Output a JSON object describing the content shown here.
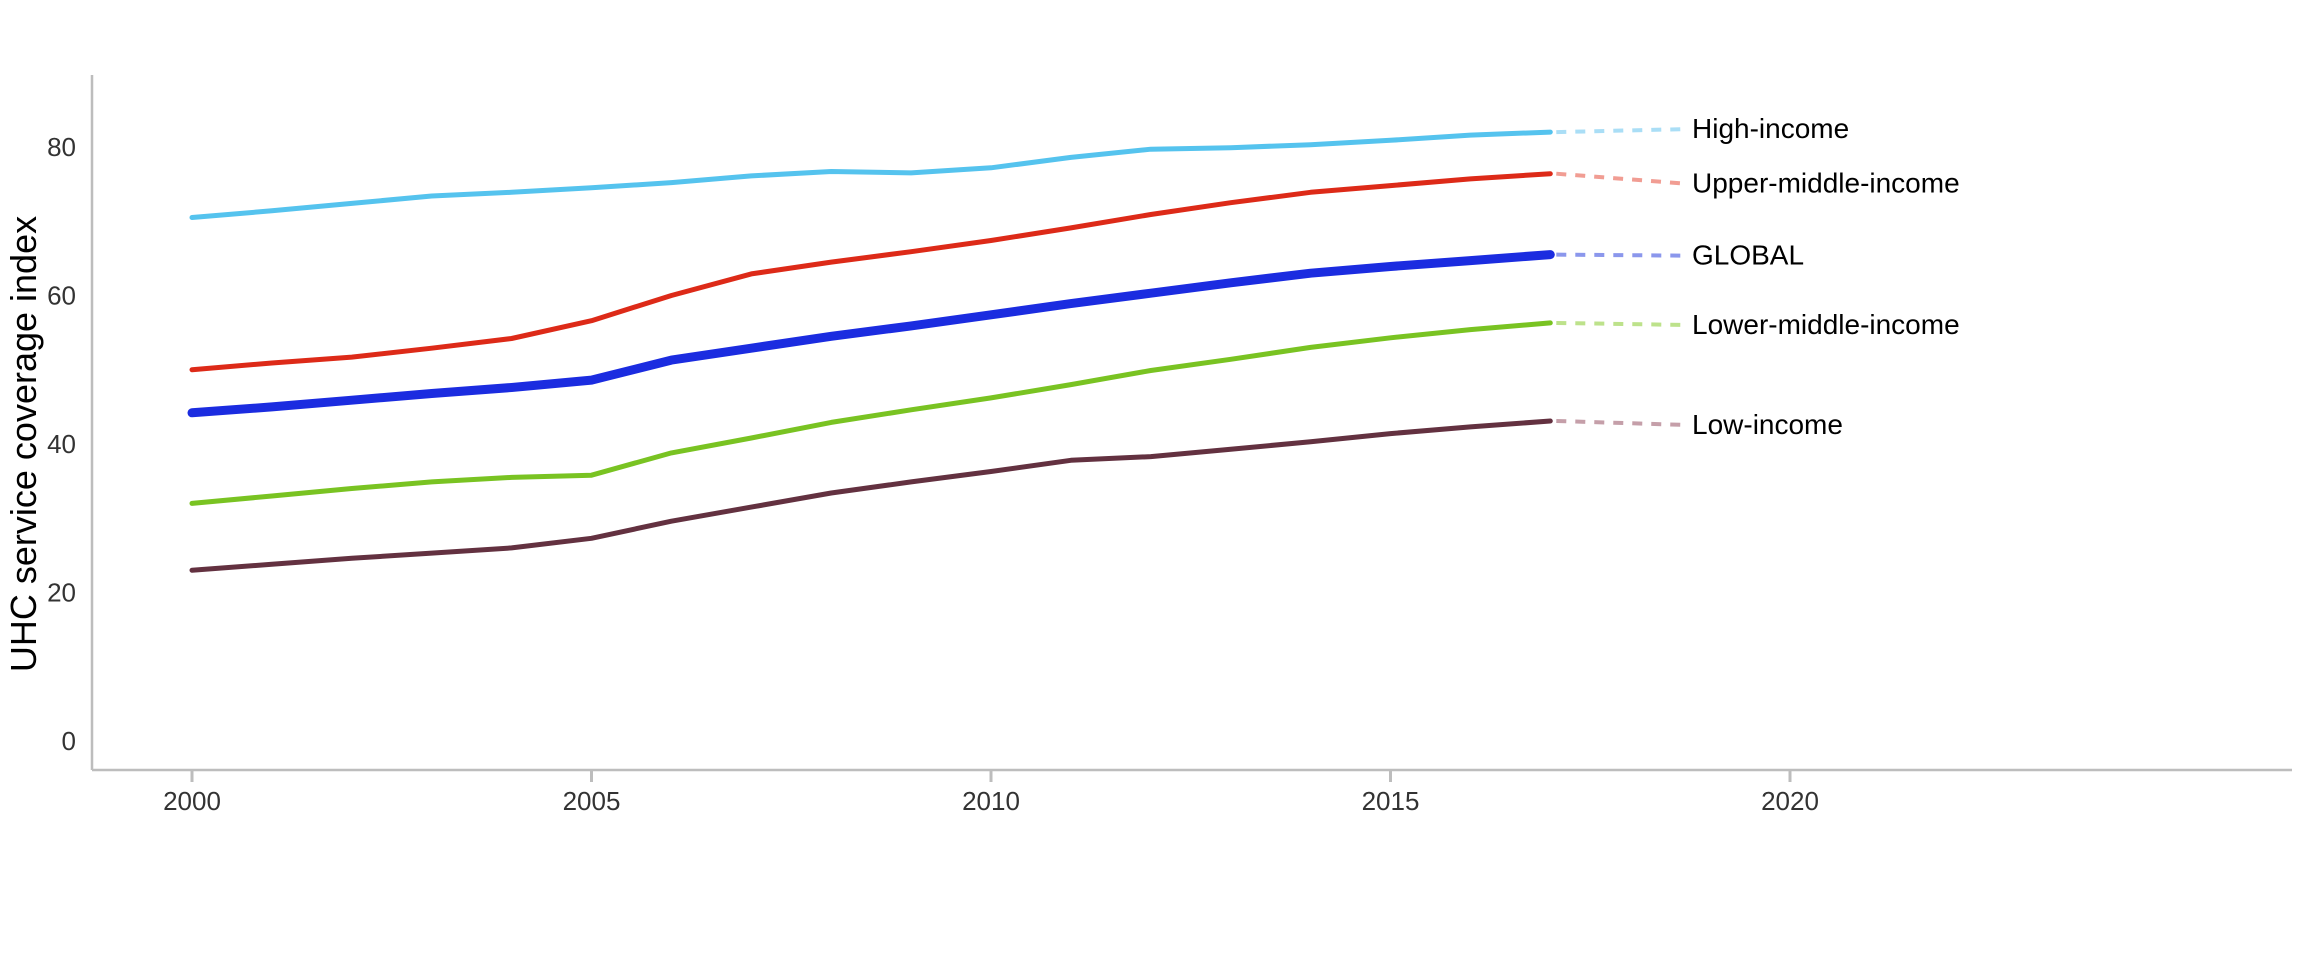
{
  "chart_data": {
    "type": "line",
    "title": "",
    "xlabel": "",
    "ylabel": "UHC service coverage index",
    "x": [
      2000,
      2001,
      2002,
      2003,
      2004,
      2005,
      2006,
      2007,
      2008,
      2009,
      2010,
      2011,
      2012,
      2013,
      2014,
      2015,
      2016,
      2017
    ],
    "xticks": [
      2000,
      2005,
      2010,
      2015,
      2020
    ],
    "yticks": [
      0,
      20,
      40,
      60,
      80
    ],
    "xlim": [
      1998.7,
      2026.3
    ],
    "ylim": [
      -3.9,
      89.7
    ],
    "grid": false,
    "legend_position": "right-direct-labels",
    "axis_color": "#bdbdbd",
    "tick_label_color": "#333333",
    "series_label_color": "#000000",
    "series": [
      {
        "name": "High-income",
        "color": "#55c3ee",
        "leader_color": "#aadef6",
        "line_width": 5,
        "values": [
          70.5,
          71.4,
          72.4,
          73.4,
          73.9,
          74.5,
          75.2,
          76.1,
          76.7,
          76.5,
          77.2,
          78.6,
          79.7,
          79.9,
          80.3,
          80.9,
          81.6,
          82.0
        ]
      },
      {
        "name": "Upper-middle-income",
        "color": "#dd2a18",
        "leader_color": "#f19d93",
        "line_width": 5,
        "values": [
          50.0,
          50.9,
          51.7,
          52.9,
          54.2,
          56.6,
          60.0,
          62.9,
          64.5,
          65.9,
          67.4,
          69.1,
          70.9,
          72.5,
          73.9,
          74.8,
          75.7,
          76.4
        ]
      },
      {
        "name": "GLOBAL",
        "color": "#1b2ce0",
        "leader_color": "#8b97ec",
        "line_width": 9,
        "values": [
          44.2,
          45.0,
          45.9,
          46.8,
          47.6,
          48.6,
          51.3,
          52.9,
          54.5,
          55.9,
          57.4,
          58.9,
          60.3,
          61.7,
          63.0,
          63.9,
          64.7,
          65.5
        ]
      },
      {
        "name": "Lower-middle-income",
        "color": "#79c322",
        "leader_color": "#bde28b",
        "line_width": 5,
        "values": [
          32.0,
          33.0,
          34.0,
          34.9,
          35.5,
          35.8,
          38.8,
          40.8,
          42.9,
          44.6,
          46.2,
          48.0,
          49.9,
          51.4,
          53.0,
          54.3,
          55.4,
          56.3
        ]
      },
      {
        "name": "Low-income",
        "color": "#633140",
        "leader_color": "#c59fa9",
        "line_width": 5,
        "values": [
          23.0,
          23.8,
          24.6,
          25.3,
          26.0,
          27.3,
          29.6,
          31.5,
          33.4,
          34.9,
          36.3,
          37.8,
          38.3,
          39.3,
          40.3,
          41.4,
          42.3,
          43.1
        ]
      }
    ]
  }
}
